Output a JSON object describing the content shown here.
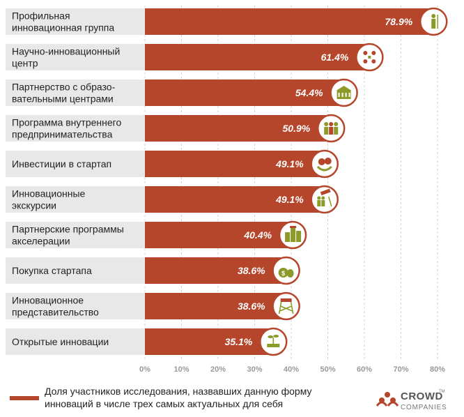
{
  "chart_data": {
    "type": "bar",
    "orientation": "horizontal",
    "categories": [
      [
        "Профильная",
        "инновационная группа"
      ],
      [
        "Научно-инновационный",
        "центр"
      ],
      [
        "Партнерство с образо-",
        "вательными центрами"
      ],
      [
        "Программа внутреннего",
        "предпринимательства"
      ],
      [
        "Инвестиции в стартап"
      ],
      [
        "Инновационные",
        "экскурсии"
      ],
      [
        "Партнерские программы",
        "акселерации"
      ],
      [
        "Покупка стартапа"
      ],
      [
        "Инновационное",
        "представительство"
      ],
      [
        "Открытые инновации"
      ]
    ],
    "values": [
      78.9,
      61.4,
      54.4,
      50.9,
      49.1,
      49.1,
      40.4,
      38.6,
      38.6,
      35.1
    ],
    "value_labels": [
      "78.9%",
      "61.4%",
      "54.4%",
      "50.9%",
      "49.1%",
      "49.1%",
      "40.4%",
      "38.6%",
      "38.6%",
      "35.1%"
    ],
    "icons": [
      "person-icon",
      "network-people-icon",
      "university-building-icon",
      "group-people-icon",
      "money-plant-icon",
      "telescope-group-icon",
      "city-buildings-icon",
      "money-bags-icon",
      "watchtower-icon",
      "growing-plant-icon"
    ],
    "xlim": [
      0,
      80
    ],
    "xticks": [
      "0%",
      "10%",
      "20%",
      "30%",
      "40%",
      "50%",
      "60%",
      "70%",
      "80%"
    ],
    "grid": "vertical-dashed"
  },
  "legend": {
    "text_line1": "Доля участников исследования, назвавших данную форму",
    "text_line2": "инноваций в числе трех самых актуальных для себя"
  },
  "brand": {
    "name": "CROWD",
    "tm": "TM",
    "sub": "COMPANIES"
  },
  "colors": {
    "bar": "#b5462b",
    "label_bg": "#e8e8e8",
    "icon_fill": "#8c9a2a",
    "icon_ring": "#b5462b"
  }
}
